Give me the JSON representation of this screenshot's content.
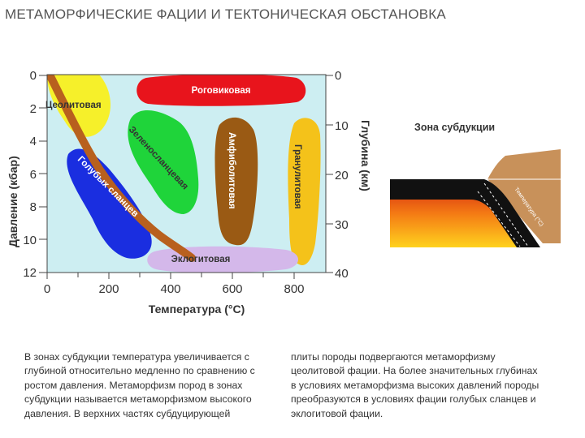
{
  "title": "МЕТАМОРФИЧЕСКИЕ ФАЦИИ И ТЕКТОНИЧЕСКАЯ ОБСТАНОВКА",
  "chart": {
    "y_left_label": "Давление (кбар)",
    "y_left_ticks": [
      "0",
      "2",
      "4",
      "6",
      "8",
      "10",
      "12"
    ],
    "y_right_label": "Глубина (км)",
    "y_right_ticks": [
      "0",
      "10",
      "20",
      "30",
      "40"
    ],
    "x_label": "Температура (°C)",
    "x_ticks": [
      "0",
      "200",
      "400",
      "600",
      "800"
    ],
    "facies": {
      "zeolite": "Цеолитовая",
      "hornfels": "Роговиковая",
      "greenschist": "Зеленосланцевая",
      "amphibolite": "Амфиболитовая",
      "granulite": "Гранулитовая",
      "blueschist": "Голубых сланцев",
      "eclogite": "Эклогитовая"
    },
    "colors": {
      "background": "#cdeef2",
      "zeolite": "#f6f02a",
      "hornfels": "#e8141c",
      "greenschist": "#1fd43a",
      "amphibolite": "#9a5a14",
      "granulite": "#f4c21a",
      "blueschist": "#1a2ee0",
      "eclogite": "#d4b8ea",
      "subduction_path": "#b8601e"
    }
  },
  "subduction": {
    "title": "Зона субдукции",
    "slab_label": "Температура (°C)",
    "colors": {
      "crust": "#c8915a",
      "plate": "#111111",
      "hot": "#f5a018"
    }
  },
  "text": {
    "para1": "В зонах субдукции температура увеличивается с глубиной относительно медленно по сравнению с ростом давления. Метаморфизм пород в зонах субдукции называется метаморфизмом высокого давления. В верхних частях субдуцирующей",
    "para2": "плиты породы подвергаются метаморфизму цеолитовой фации. На более значительных глубинах в условиях метаморфизма высоких давлений породы преобразуются в условиях фации голубых сланцев и эклогитовой фации."
  }
}
